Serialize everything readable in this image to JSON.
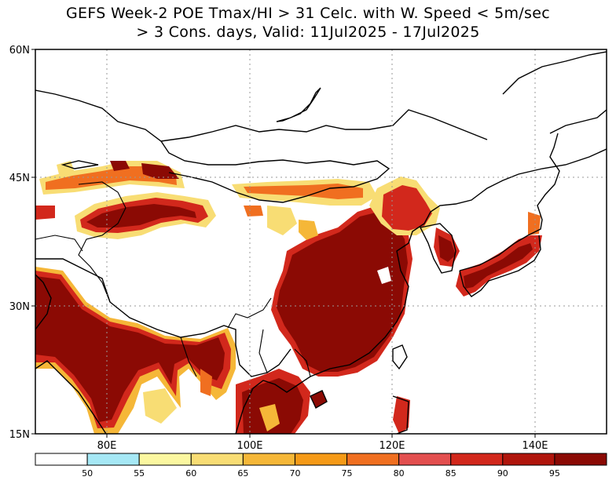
{
  "title": {
    "line1": "GEFS Week-2 POE Tmax/HI > 31 Celc. with W. Speed < 5m/sec",
    "line2": "> 3 Cons. days, Valid: 11Jul2025 - 17Jul2025"
  },
  "map": {
    "lon_range": [
      70,
      150
    ],
    "lat_range": [
      15,
      60
    ],
    "lat_labels": [
      "60N",
      "45N",
      "30N",
      "15N"
    ],
    "lon_labels": [
      "80E",
      "100E",
      "120E",
      "140E"
    ],
    "grid": "dotted",
    "colors": {
      "coast": "#000000",
      "grid": "#999999"
    }
  },
  "legend": {
    "ticks": [
      "50",
      "55",
      "60",
      "65",
      "70",
      "75",
      "80",
      "85",
      "90",
      "95"
    ],
    "bins": [
      {
        "color": "#ffffff"
      },
      {
        "color": "#a6e8f5"
      },
      {
        "color": "#fbf7a0"
      },
      {
        "color": "#f8dd74"
      },
      {
        "color": "#f5b738"
      },
      {
        "color": "#f59a17"
      },
      {
        "color": "#f06f20"
      },
      {
        "color": "#e34f4f"
      },
      {
        "color": "#d2281c"
      },
      {
        "color": "#b0150c"
      },
      {
        "color": "#8b0a04"
      }
    ]
  }
}
